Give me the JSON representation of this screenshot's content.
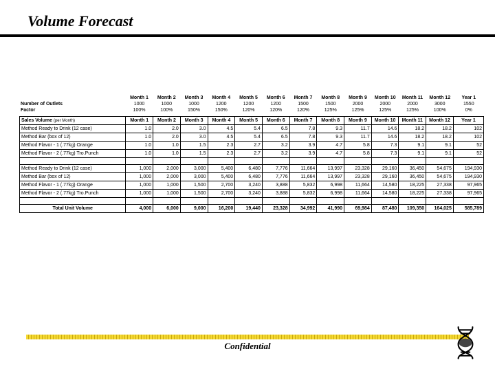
{
  "title": "Volume Forecast",
  "confidential_label": "Confidential",
  "months_header": [
    "Month 1",
    "Month 2",
    "Month 3",
    "Month 4",
    "Month 5",
    "Month 6",
    "Month 7",
    "Month 8",
    "Month 9",
    "Month 10",
    "Month 11",
    "Month 12",
    "Year 1"
  ],
  "outlets": {
    "label": "Number of Outlets",
    "factor_label": "Factor",
    "outlets_row": [
      "1000",
      "1000",
      "1000",
      "1200",
      "1200",
      "1200",
      "1500",
      "1500",
      "2000",
      "2000",
      "2000",
      "3000",
      "1550"
    ],
    "factor_row": [
      "100%",
      "100%",
      "150%",
      "150%",
      "120%",
      "120%",
      "120%",
      "125%",
      "125%",
      "125%",
      "125%",
      "100%",
      "0%"
    ]
  },
  "sales_header_main": "Sales Volume",
  "sales_header_sub": "(per Month)",
  "products_rate": [
    {
      "label": "Method Ready to Drink (12 case)",
      "vals": [
        "1.0",
        "2.0",
        "3.0",
        "4.5",
        "5.4",
        "6.5",
        "7.8",
        "9.3",
        "11.7",
        "14.6",
        "18.2",
        "18.2",
        "102"
      ]
    },
    {
      "label": "Method Bar (box of 12)",
      "vals": [
        "1.0",
        "2.0",
        "3.0",
        "4.5",
        "5.4",
        "6.5",
        "7.8",
        "9.3",
        "11.7",
        "14.6",
        "18.2",
        "18.2",
        "102"
      ]
    },
    {
      "label": "Method Flavor - 1 (.77kg) Orange",
      "vals": [
        "1.0",
        "1.0",
        "1.5",
        "2.3",
        "2.7",
        "3.2",
        "3.9",
        "4.7",
        "5.8",
        "7.3",
        "9.1",
        "9.1",
        "52"
      ]
    },
    {
      "label": "Method Flavor - 2 (.77kg) Tro.Punch",
      "vals": [
        "1.0",
        "1.0",
        "1.5",
        "2.3",
        "2.7",
        "3.2",
        "3.9",
        "4.7",
        "5.8",
        "7.3",
        "9.1",
        "9.1",
        "52"
      ]
    }
  ],
  "products_units": [
    {
      "label": "Method Ready to Drink (12 case)",
      "vals": [
        "1,000",
        "2,000",
        "3,000",
        "5,400",
        "6,480",
        "7,776",
        "11,664",
        "13,997",
        "23,328",
        "29,160",
        "36,450",
        "54,675",
        "194,930"
      ]
    },
    {
      "label": "Method Bar (box of 12)",
      "vals": [
        "1,000",
        "2,000",
        "3,000",
        "5,400",
        "6,480",
        "7,776",
        "11,664",
        "13,997",
        "23,328",
        "29,160",
        "36,450",
        "54,675",
        "194,930"
      ]
    },
    {
      "label": "Method Flavor - 1 (.77kg) Orange",
      "vals": [
        "1,000",
        "1,000",
        "1,500",
        "2,700",
        "3,240",
        "3,888",
        "5,832",
        "6,998",
        "11,664",
        "14,580",
        "18,225",
        "27,338",
        "97,965"
      ]
    },
    {
      "label": "Method Flavor - 2 (.77kg) Tro.Punch",
      "vals": [
        "1,000",
        "1,000",
        "1,500",
        "2,700",
        "3,240",
        "3,888",
        "5,832",
        "6,998",
        "11,664",
        "14,580",
        "18,225",
        "27,338",
        "97,965"
      ]
    }
  ],
  "total": {
    "label": "Total  Unit Volume",
    "vals": [
      "4,000",
      "6,000",
      "9,000",
      "16,200",
      "19,440",
      "23,328",
      "34,992",
      "41,990",
      "69,984",
      "87,480",
      "109,350",
      "164,025",
      "585,789"
    ]
  },
  "colors": {
    "text": "#000000",
    "rule": "#000000",
    "yellow_a": "#f5d933",
    "yellow_b": "#c9a80e",
    "background": "#ffffff"
  }
}
